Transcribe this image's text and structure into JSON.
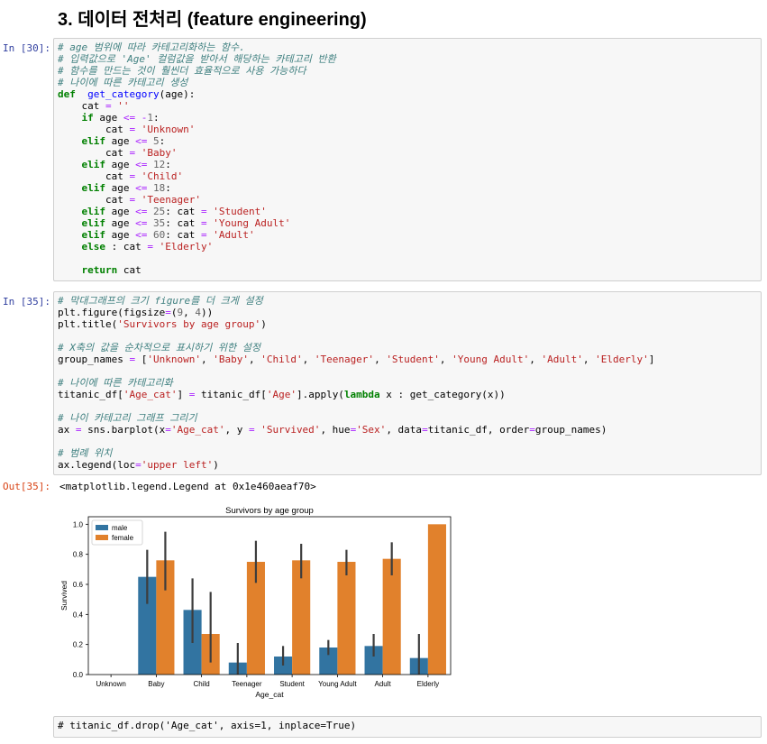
{
  "heading": "3. 데이터 전처리 (feature engineering)",
  "cells": [
    {
      "prompt": "In [30]:",
      "lines": [
        [
          [
            "cm",
            "# age 범위에 따라 카테고리화하는 함수."
          ]
        ],
        [
          [
            "cm",
            "# 입력값으로 'Age' 컬럼값을 받아서 해당하는 카테고리 반환"
          ]
        ],
        [
          [
            "cm",
            "# 함수를 만드는 것이 훨씬더 효율적으로 사용 가능하다"
          ]
        ],
        [
          [
            "cm",
            "# 나이에 따른 카테고리 생성"
          ]
        ],
        [
          [
            "kw",
            "def"
          ],
          [
            "",
            "  "
          ],
          [
            "fn",
            "get_category"
          ],
          [
            "",
            "(age):"
          ]
        ],
        [
          [
            "",
            "    cat "
          ],
          [
            "op",
            "="
          ],
          [
            "",
            " "
          ],
          [
            "st",
            "''"
          ]
        ],
        [
          [
            "",
            "    "
          ],
          [
            "kw",
            "if"
          ],
          [
            "",
            " age "
          ],
          [
            "op",
            "<="
          ],
          [
            "",
            " "
          ],
          [
            "op",
            "-"
          ],
          [
            "nu",
            "1"
          ],
          [
            "",
            ":"
          ]
        ],
        [
          [
            "",
            "        cat "
          ],
          [
            "op",
            "="
          ],
          [
            "",
            " "
          ],
          [
            "st",
            "'Unknown'"
          ]
        ],
        [
          [
            "",
            "    "
          ],
          [
            "kw",
            "elif"
          ],
          [
            "",
            " age "
          ],
          [
            "op",
            "<="
          ],
          [
            "",
            " "
          ],
          [
            "nu",
            "5"
          ],
          [
            "",
            ":"
          ]
        ],
        [
          [
            "",
            "        cat "
          ],
          [
            "op",
            "="
          ],
          [
            "",
            " "
          ],
          [
            "st",
            "'Baby'"
          ]
        ],
        [
          [
            "",
            "    "
          ],
          [
            "kw",
            "elif"
          ],
          [
            "",
            " age "
          ],
          [
            "op",
            "<="
          ],
          [
            "",
            " "
          ],
          [
            "nu",
            "12"
          ],
          [
            "",
            ":"
          ]
        ],
        [
          [
            "",
            "        cat "
          ],
          [
            "op",
            "="
          ],
          [
            "",
            " "
          ],
          [
            "st",
            "'Child'"
          ]
        ],
        [
          [
            "",
            "    "
          ],
          [
            "kw",
            "elif"
          ],
          [
            "",
            " age "
          ],
          [
            "op",
            "<="
          ],
          [
            "",
            " "
          ],
          [
            "nu",
            "18"
          ],
          [
            "",
            ":"
          ]
        ],
        [
          [
            "",
            "        cat "
          ],
          [
            "op",
            "="
          ],
          [
            "",
            " "
          ],
          [
            "st",
            "'Teenager'"
          ]
        ],
        [
          [
            "",
            "    "
          ],
          [
            "kw",
            "elif"
          ],
          [
            "",
            " age "
          ],
          [
            "op",
            "<="
          ],
          [
            "",
            " "
          ],
          [
            "nu",
            "25"
          ],
          [
            "",
            ": cat "
          ],
          [
            "op",
            "="
          ],
          [
            "",
            " "
          ],
          [
            "st",
            "'Student'"
          ]
        ],
        [
          [
            "",
            "    "
          ],
          [
            "kw",
            "elif"
          ],
          [
            "",
            " age "
          ],
          [
            "op",
            "<="
          ],
          [
            "",
            " "
          ],
          [
            "nu",
            "35"
          ],
          [
            "",
            ": cat "
          ],
          [
            "op",
            "="
          ],
          [
            "",
            " "
          ],
          [
            "st",
            "'Young Adult'"
          ]
        ],
        [
          [
            "",
            "    "
          ],
          [
            "kw",
            "elif"
          ],
          [
            "",
            " age "
          ],
          [
            "op",
            "<="
          ],
          [
            "",
            " "
          ],
          [
            "nu",
            "60"
          ],
          [
            "",
            ": cat "
          ],
          [
            "op",
            "="
          ],
          [
            "",
            " "
          ],
          [
            "st",
            "'Adult'"
          ]
        ],
        [
          [
            "",
            "    "
          ],
          [
            "kw",
            "else"
          ],
          [
            "",
            " : cat "
          ],
          [
            "op",
            "="
          ],
          [
            "",
            " "
          ],
          [
            "st",
            "'Elderly'"
          ]
        ],
        [
          [
            "",
            ""
          ]
        ],
        [
          [
            "",
            "    "
          ],
          [
            "kw",
            "return"
          ],
          [
            "",
            " cat"
          ]
        ]
      ]
    },
    {
      "prompt": "In [35]:",
      "lines": [
        [
          [
            "cm",
            "# 막대그래프의 크기 figure를 더 크게 설정"
          ]
        ],
        [
          [
            "",
            "plt.figure(figsize"
          ],
          [
            "op",
            "="
          ],
          [
            "",
            "("
          ],
          [
            "nu",
            "9"
          ],
          [
            "",
            ", "
          ],
          [
            "nu",
            "4"
          ],
          [
            "",
            "))"
          ]
        ],
        [
          [
            "",
            "plt.title("
          ],
          [
            "st",
            "'Survivors by age group'"
          ],
          [
            "",
            ")"
          ]
        ],
        [
          [
            "",
            ""
          ]
        ],
        [
          [
            "cm",
            "# X축의 값을 순차적으로 표시하기 위한 설정"
          ]
        ],
        [
          [
            "",
            "group_names "
          ],
          [
            "op",
            "="
          ],
          [
            "",
            " ["
          ],
          [
            "st",
            "'Unknown'"
          ],
          [
            "",
            ", "
          ],
          [
            "st",
            "'Baby'"
          ],
          [
            "",
            ", "
          ],
          [
            "st",
            "'Child'"
          ],
          [
            "",
            ", "
          ],
          [
            "st",
            "'Teenager'"
          ],
          [
            "",
            ", "
          ],
          [
            "st",
            "'Student'"
          ],
          [
            "",
            ", "
          ],
          [
            "st",
            "'Young Adult'"
          ],
          [
            "",
            ", "
          ],
          [
            "st",
            "'Adult'"
          ],
          [
            "",
            ", "
          ],
          [
            "st",
            "'Elderly'"
          ],
          [
            "",
            "]"
          ]
        ],
        [
          [
            "",
            ""
          ]
        ],
        [
          [
            "cm",
            "# 나이에 따른 카테고리화"
          ]
        ],
        [
          [
            "",
            "titanic_df["
          ],
          [
            "st",
            "'Age_cat'"
          ],
          [
            "",
            "] "
          ],
          [
            "op",
            "="
          ],
          [
            "",
            " titanic_df["
          ],
          [
            "st",
            "'Age'"
          ],
          [
            "",
            "].apply("
          ],
          [
            "kw",
            "lambda"
          ],
          [
            "",
            " x : get_category(x))"
          ]
        ],
        [
          [
            "",
            ""
          ]
        ],
        [
          [
            "cm",
            "# 나이 카테고리 그래프 그리기"
          ]
        ],
        [
          [
            "",
            "ax "
          ],
          [
            "op",
            "="
          ],
          [
            "",
            " sns.barplot(x"
          ],
          [
            "op",
            "="
          ],
          [
            "st",
            "'Age_cat'"
          ],
          [
            "",
            ", y "
          ],
          [
            "op",
            "="
          ],
          [
            "",
            " "
          ],
          [
            "st",
            "'Survived'"
          ],
          [
            "",
            ", hue"
          ],
          [
            "op",
            "="
          ],
          [
            "st",
            "'Sex'"
          ],
          [
            "",
            ", data"
          ],
          [
            "op",
            "="
          ],
          [
            "",
            "titanic_df, order"
          ],
          [
            "op",
            "="
          ],
          [
            "",
            "group_names)"
          ]
        ],
        [
          [
            "",
            ""
          ]
        ],
        [
          [
            "cm",
            "# 범례 위치"
          ]
        ],
        [
          [
            "",
            "ax.legend(loc"
          ],
          [
            "op",
            "="
          ],
          [
            "st",
            "'upper left'"
          ],
          [
            "",
            ")"
          ]
        ]
      ]
    },
    {
      "prompt": "",
      "lines": [
        [
          [
            "",
            "# titanic_df.drop('Age_cat', axis=1, inplace=True)"
          ]
        ]
      ]
    }
  ],
  "output": {
    "prompt": "Out[35]:",
    "text": "<matplotlib.legend.Legend at 0x1e460aeaf70>"
  },
  "chart_data": {
    "type": "bar",
    "title": "Survivors by age group",
    "xlabel": "Age_cat",
    "ylabel": "Survived",
    "ylim": [
      0,
      1.05
    ],
    "yticks": [
      "0.0",
      "0.2",
      "0.4",
      "0.6",
      "0.8",
      "1.0"
    ],
    "categories": [
      "Unknown",
      "Baby",
      "Child",
      "Teenager",
      "Student",
      "Young Adult",
      "Adult",
      "Elderly"
    ],
    "series": [
      {
        "name": "male",
        "color": "#3274a1",
        "values": [
          null,
          0.65,
          0.43,
          0.08,
          0.12,
          0.18,
          0.19,
          0.11
        ],
        "ci": [
          null,
          [
            0.47,
            0.83
          ],
          [
            0.21,
            0.64
          ],
          [
            0.0,
            0.21
          ],
          [
            0.06,
            0.19
          ],
          [
            0.13,
            0.23
          ],
          [
            0.12,
            0.27
          ],
          [
            0.0,
            0.27
          ]
        ]
      },
      {
        "name": "female",
        "color": "#e1812c",
        "values": [
          null,
          0.76,
          0.27,
          0.75,
          0.76,
          0.75,
          0.77,
          1.0
        ],
        "ci": [
          null,
          [
            0.56,
            0.95
          ],
          [
            0.08,
            0.55
          ],
          [
            0.61,
            0.89
          ],
          [
            0.64,
            0.87
          ],
          [
            0.66,
            0.83
          ],
          [
            0.66,
            0.88
          ],
          [
            1.0,
            1.0
          ]
        ]
      }
    ],
    "legend": "upper left",
    "grid": false
  }
}
